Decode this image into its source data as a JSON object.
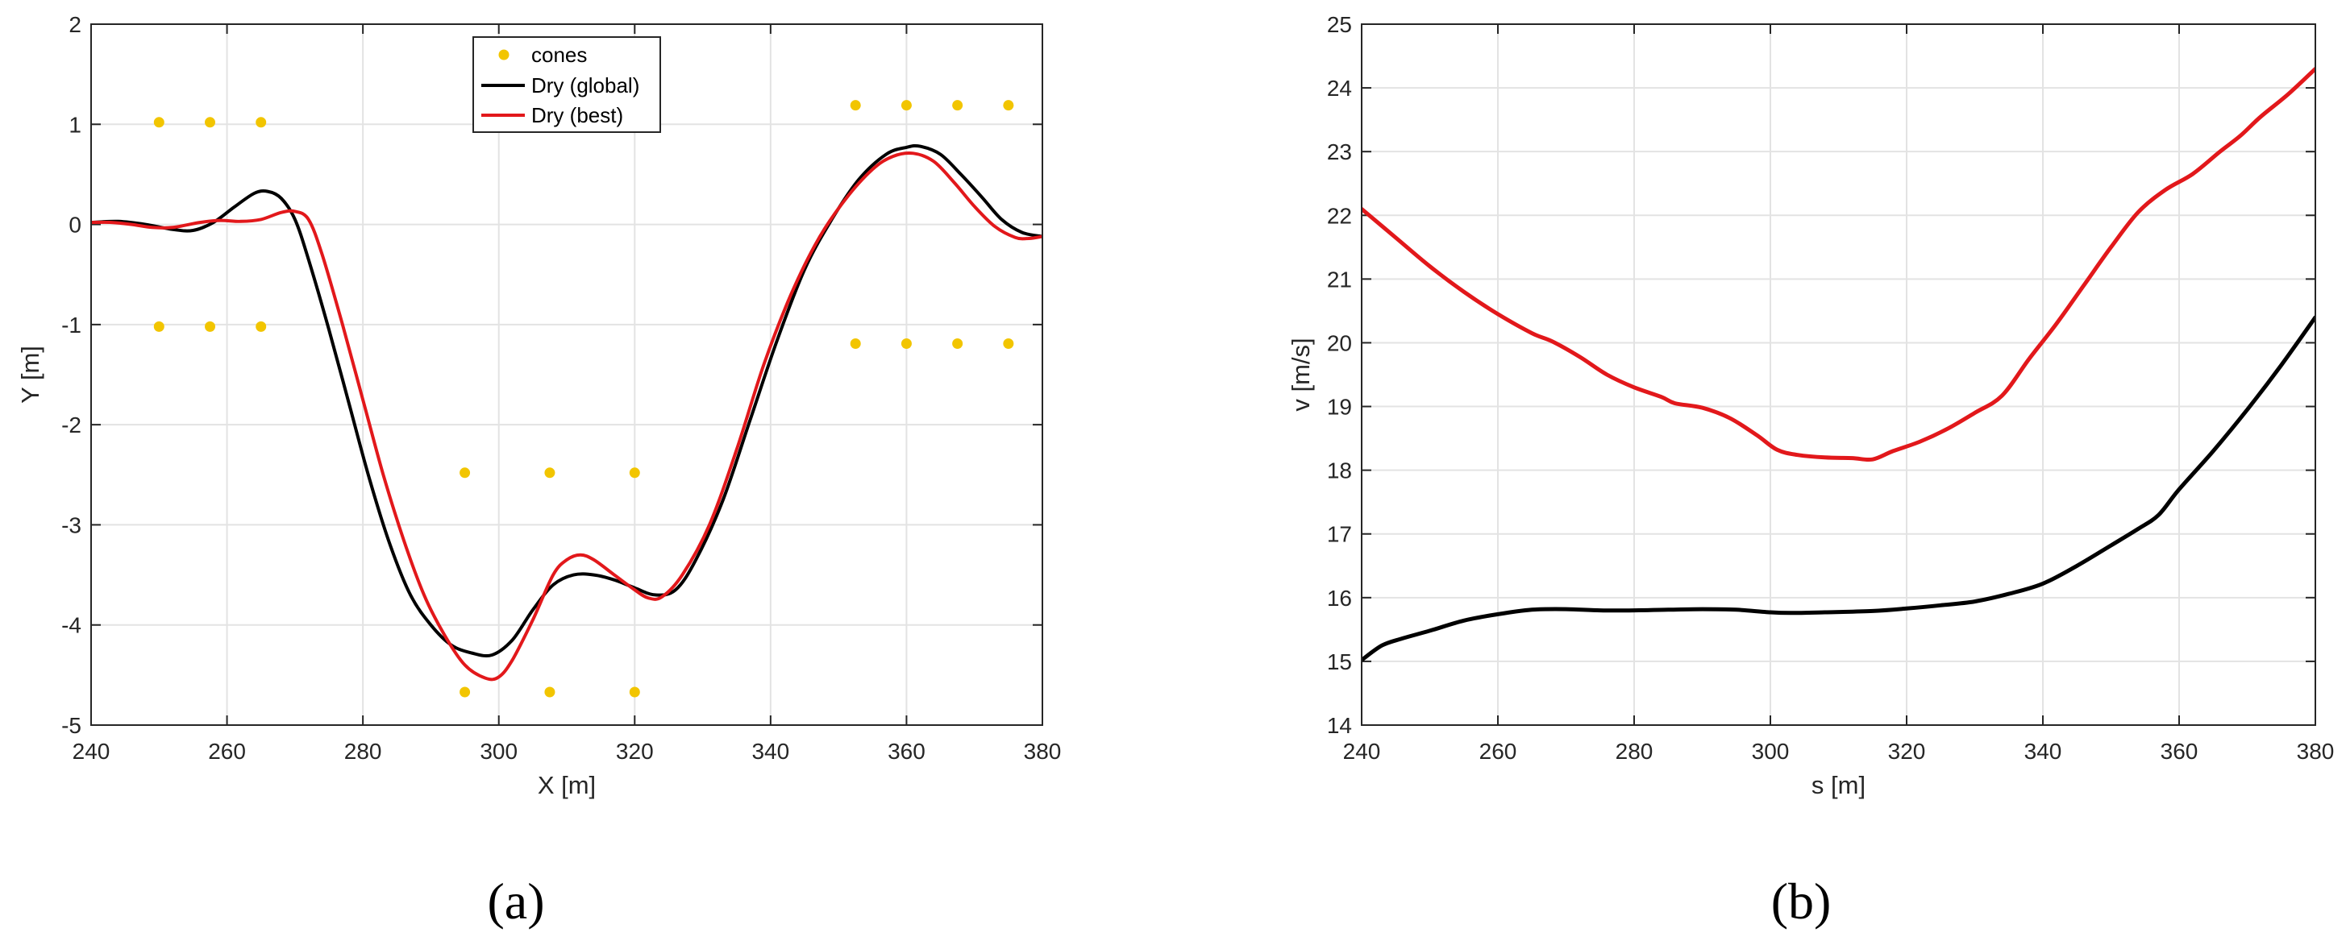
{
  "chart_data": [
    {
      "type": "line",
      "xlabel": "X [m]",
      "ylabel": "Y [m]",
      "xlim": [
        240,
        380
      ],
      "ylim": [
        -5,
        2
      ],
      "xticks": [
        240,
        260,
        280,
        300,
        320,
        340,
        360,
        380
      ],
      "yticks": [
        -5,
        -4,
        -3,
        -2,
        -1,
        0,
        1,
        2
      ],
      "grid": true,
      "legend_position": "top-center",
      "caption": "(a)",
      "cones": {
        "name": "cones",
        "color": "#F2C500",
        "points": [
          [
            250,
            1.02
          ],
          [
            257.5,
            1.02
          ],
          [
            265,
            1.02
          ],
          [
            250,
            -1.02
          ],
          [
            257.5,
            -1.02
          ],
          [
            265,
            -1.02
          ],
          [
            295,
            -2.48
          ],
          [
            307.5,
            -2.48
          ],
          [
            320,
            -2.48
          ],
          [
            295,
            -4.67
          ],
          [
            307.5,
            -4.67
          ],
          [
            320,
            -4.67
          ],
          [
            352.5,
            1.19
          ],
          [
            360,
            1.19
          ],
          [
            367.5,
            1.19
          ],
          [
            375,
            1.19
          ],
          [
            352.5,
            -1.19
          ],
          [
            360,
            -1.19
          ],
          [
            367.5,
            -1.19
          ],
          [
            375,
            -1.19
          ]
        ]
      },
      "series": [
        {
          "name": "Dry (global)",
          "color": "#000000",
          "points": [
            [
              240,
              0.02
            ],
            [
              244,
              0.03
            ],
            [
              248,
              0.0
            ],
            [
              252,
              -0.05
            ],
            [
              255,
              -0.06
            ],
            [
              258,
              0.02
            ],
            [
              261,
              0.17
            ],
            [
              264,
              0.31
            ],
            [
              266,
              0.33
            ],
            [
              268,
              0.26
            ],
            [
              270,
              0.05
            ],
            [
              272,
              -0.35
            ],
            [
              275,
              -1.05
            ],
            [
              278,
              -1.8
            ],
            [
              281,
              -2.55
            ],
            [
              284,
              -3.2
            ],
            [
              287,
              -3.7
            ],
            [
              290,
              -4.0
            ],
            [
              293,
              -4.2
            ],
            [
              296,
              -4.28
            ],
            [
              299,
              -4.3
            ],
            [
              302,
              -4.15
            ],
            [
              305,
              -3.85
            ],
            [
              308,
              -3.6
            ],
            [
              311,
              -3.5
            ],
            [
              314,
              -3.5
            ],
            [
              317,
              -3.55
            ],
            [
              320,
              -3.63
            ],
            [
              323,
              -3.7
            ],
            [
              326,
              -3.65
            ],
            [
              329,
              -3.35
            ],
            [
              333,
              -2.75
            ],
            [
              337,
              -1.95
            ],
            [
              341,
              -1.15
            ],
            [
              345,
              -0.45
            ],
            [
              349,
              0.05
            ],
            [
              353,
              0.45
            ],
            [
              357,
              0.7
            ],
            [
              360,
              0.77
            ],
            [
              362,
              0.78
            ],
            [
              365,
              0.7
            ],
            [
              368,
              0.5
            ],
            [
              371,
              0.28
            ],
            [
              374,
              0.05
            ],
            [
              377,
              -0.08
            ],
            [
              380,
              -0.12
            ]
          ]
        },
        {
          "name": "Dry (best)",
          "color": "#E2181B",
          "points": [
            [
              240,
              0.02
            ],
            [
              243,
              0.02
            ],
            [
              246,
              0.0
            ],
            [
              249,
              -0.03
            ],
            [
              252,
              -0.03
            ],
            [
              256,
              0.02
            ],
            [
              259,
              0.04
            ],
            [
              262,
              0.03
            ],
            [
              265,
              0.05
            ],
            [
              268,
              0.12
            ],
            [
              270,
              0.13
            ],
            [
              272,
              0.05
            ],
            [
              274,
              -0.3
            ],
            [
              277,
              -1.0
            ],
            [
              280,
              -1.75
            ],
            [
              283,
              -2.5
            ],
            [
              286,
              -3.15
            ],
            [
              289,
              -3.7
            ],
            [
              292,
              -4.1
            ],
            [
              295,
              -4.4
            ],
            [
              298,
              -4.53
            ],
            [
              300,
              -4.52
            ],
            [
              302,
              -4.35
            ],
            [
              305,
              -3.95
            ],
            [
              308,
              -3.5
            ],
            [
              310,
              -3.35
            ],
            [
              312,
              -3.3
            ],
            [
              314,
              -3.35
            ],
            [
              317,
              -3.5
            ],
            [
              320,
              -3.65
            ],
            [
              322,
              -3.73
            ],
            [
              324,
              -3.72
            ],
            [
              327,
              -3.5
            ],
            [
              331,
              -3.0
            ],
            [
              335,
              -2.25
            ],
            [
              339,
              -1.4
            ],
            [
              343,
              -0.7
            ],
            [
              347,
              -0.15
            ],
            [
              351,
              0.25
            ],
            [
              355,
              0.55
            ],
            [
              358,
              0.68
            ],
            [
              361,
              0.71
            ],
            [
              364,
              0.63
            ],
            [
              367,
              0.42
            ],
            [
              370,
              0.18
            ],
            [
              373,
              -0.02
            ],
            [
              376,
              -0.13
            ],
            [
              378,
              -0.14
            ],
            [
              380,
              -0.12
            ]
          ]
        }
      ]
    },
    {
      "type": "line",
      "xlabel": "s [m]",
      "ylabel": "v [m/s]",
      "xlim": [
        240,
        380
      ],
      "ylim": [
        14,
        25
      ],
      "xticks": [
        240,
        260,
        280,
        300,
        320,
        340,
        360,
        380
      ],
      "yticks": [
        14,
        15,
        16,
        17,
        18,
        19,
        20,
        21,
        22,
        23,
        24,
        25
      ],
      "grid": true,
      "caption": "(b)",
      "series": [
        {
          "color": "#E2181B",
          "points": [
            [
              240,
              22.1
            ],
            [
              245,
              21.65
            ],
            [
              250,
              21.2
            ],
            [
              255,
              20.8
            ],
            [
              260,
              20.45
            ],
            [
              265,
              20.15
            ],
            [
              268,
              20.02
            ],
            [
              272,
              19.78
            ],
            [
              276,
              19.5
            ],
            [
              280,
              19.3
            ],
            [
              284,
              19.15
            ],
            [
              286,
              19.05
            ],
            [
              290,
              18.98
            ],
            [
              294,
              18.82
            ],
            [
              298,
              18.55
            ],
            [
              301,
              18.32
            ],
            [
              304,
              18.24
            ],
            [
              308,
              18.2
            ],
            [
              312,
              18.19
            ],
            [
              315,
              18.17
            ],
            [
              318,
              18.3
            ],
            [
              322,
              18.45
            ],
            [
              326,
              18.65
            ],
            [
              330,
              18.9
            ],
            [
              334,
              19.17
            ],
            [
              338,
              19.75
            ],
            [
              342,
              20.3
            ],
            [
              346,
              20.9
            ],
            [
              350,
              21.5
            ],
            [
              354,
              22.05
            ],
            [
              358,
              22.4
            ],
            [
              362,
              22.65
            ],
            [
              366,
              23.0
            ],
            [
              369,
              23.25
            ],
            [
              372,
              23.55
            ],
            [
              376,
              23.9
            ],
            [
              380,
              24.3
            ]
          ]
        },
        {
          "color": "#000000",
          "points": [
            [
              240,
              15.02
            ],
            [
              243,
              15.25
            ],
            [
              246,
              15.36
            ],
            [
              250,
              15.48
            ],
            [
              255,
              15.64
            ],
            [
              260,
              15.74
            ],
            [
              265,
              15.81
            ],
            [
              270,
              15.82
            ],
            [
              275,
              15.8
            ],
            [
              280,
              15.8
            ],
            [
              285,
              15.81
            ],
            [
              290,
              15.82
            ],
            [
              295,
              15.81
            ],
            [
              300,
              15.77
            ],
            [
              303,
              15.76
            ],
            [
              308,
              15.77
            ],
            [
              315,
              15.79
            ],
            [
              320,
              15.83
            ],
            [
              325,
              15.88
            ],
            [
              330,
              15.94
            ],
            [
              335,
              16.06
            ],
            [
              340,
              16.22
            ],
            [
              345,
              16.5
            ],
            [
              350,
              16.82
            ],
            [
              354,
              17.08
            ],
            [
              357,
              17.3
            ],
            [
              360,
              17.7
            ],
            [
              365,
              18.3
            ],
            [
              370,
              18.95
            ],
            [
              375,
              19.65
            ],
            [
              380,
              20.4
            ]
          ]
        }
      ]
    }
  ]
}
